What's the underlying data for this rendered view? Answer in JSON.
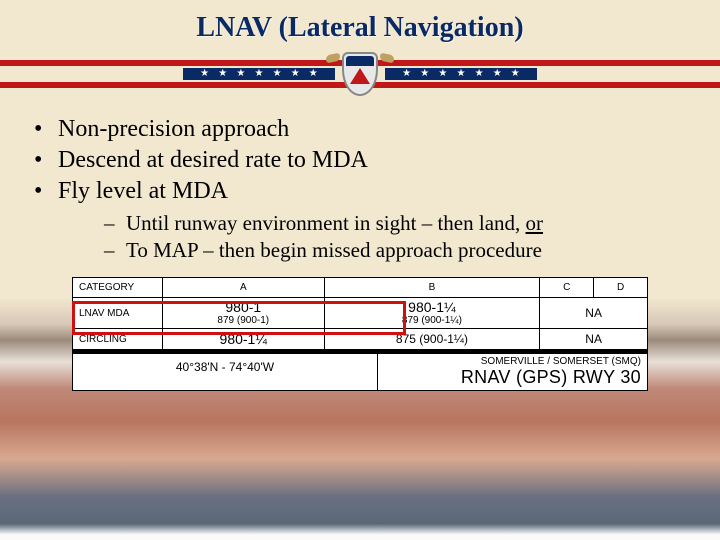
{
  "title": "LNAV (Lateral Navigation)",
  "colors": {
    "title": "#0a2a66",
    "stripe_red": "#c01818",
    "stripe_blue": "#0a2a66",
    "highlight": "#d01010",
    "background_top": "#f2e8d0"
  },
  "stars_per_side": 7,
  "bullets": [
    "Non-precision approach",
    "Descend at desired rate to MDA",
    "Fly level at MDA"
  ],
  "sub_bullets": {
    "prefix1": "Until runway environment in sight – then land, ",
    "or": "or",
    "item2": "To MAP – then begin missed approach procedure"
  },
  "minima": {
    "headers": [
      "CATEGORY",
      "A",
      "B",
      "C",
      "D"
    ],
    "rows": [
      {
        "label": "LNAV MDA",
        "highlight": true,
        "cells": [
          {
            "main": "980-1",
            "sub": "879 (900-1)"
          },
          {
            "main": "980-1¼",
            "sub": "879 (900-1¼)"
          },
          {
            "span": 2,
            "text": "NA"
          }
        ]
      },
      {
        "label": "CIRCLING",
        "highlight": false,
        "cells": [
          {
            "main": "980-1¼",
            "sub": ""
          },
          {
            "main": "875 (900-1¼)",
            "sub": ""
          },
          {
            "span": 2,
            "text": "NA"
          }
        ]
      }
    ]
  },
  "footer": {
    "coords": "40°38'N - 74°40'W",
    "airport": "SOMERVILLE / SOMERSET",
    "ident": "(SMQ)",
    "procedure": "RNAV (GPS) RWY 30"
  }
}
